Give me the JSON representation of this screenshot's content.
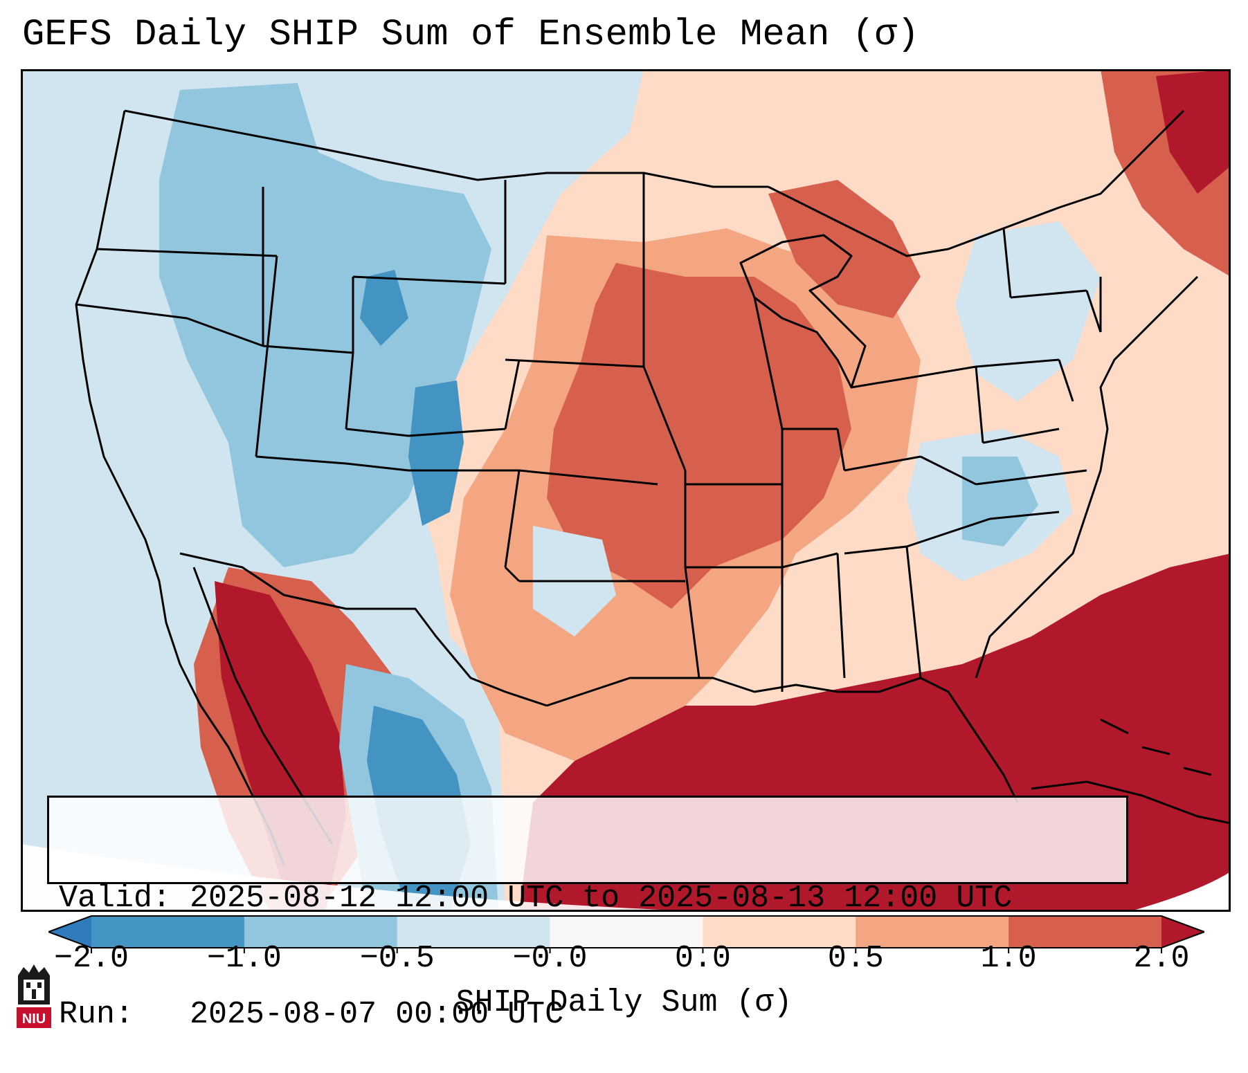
{
  "title": "GEFS Daily SHIP Sum of Ensemble Mean (σ)",
  "info": {
    "valid_line": "Valid: 2025-08-12 12:00 UTC to 2025-08-13 12:00 UTC",
    "run_line": "Run:   2025-08-07 00:00 UTC"
  },
  "colorbar": {
    "label": "SHIP Daily Sum (σ)",
    "ticks": [
      "−2.0",
      "−1.0",
      "−0.5",
      "−0.0",
      "0.0",
      "0.5",
      "1.0",
      "2.0"
    ],
    "bins": [
      {
        "color": "#2f7bbb"
      },
      {
        "color": "#4393c3"
      },
      {
        "color": "#92c5de"
      },
      {
        "color": "#d1e5f0"
      },
      {
        "color": "#f7f7f7"
      },
      {
        "color": "#fddbc7"
      },
      {
        "color": "#f4a582"
      },
      {
        "color": "#d6604d"
      },
      {
        "color": "#b2182b"
      }
    ],
    "extend": "both"
  },
  "map_colors": {
    "ocean_west": "#d1e5f0",
    "strong_neg": "#4393c3",
    "mid_neg": "#92c5de",
    "weak_neg": "#d1e5f0",
    "weak_pos": "#fddbc7",
    "mid_pos": "#f4a582",
    "strong_pos": "#d6604d",
    "very_strong_pos": "#b2182b"
  },
  "logo": {
    "text": "NIU"
  }
}
